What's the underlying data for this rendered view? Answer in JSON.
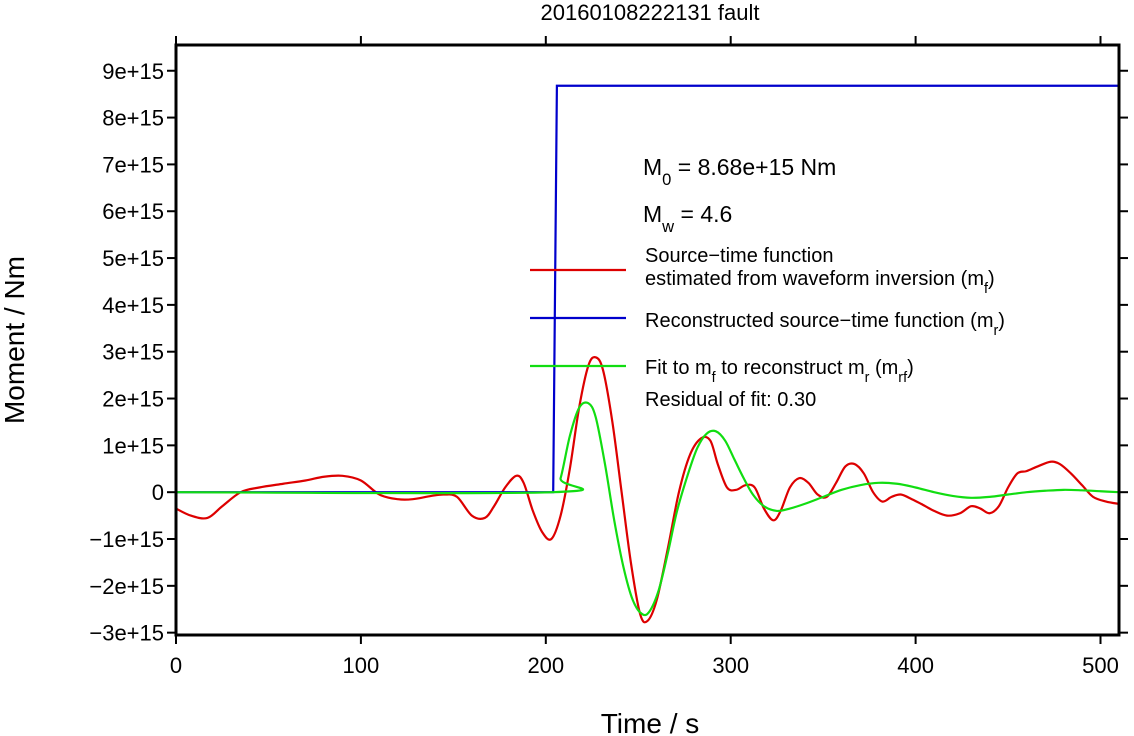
{
  "chart_data": {
    "type": "line",
    "title": "20160108222131 fault",
    "xlabel": "Time / s",
    "ylabel": "Moment / Nm",
    "xlim": [
      0,
      510
    ],
    "ylim": [
      -3050000000000000.0,
      9550000000000000.0
    ],
    "grid": false,
    "x_ticks": [
      0,
      100,
      200,
      300,
      400,
      500
    ],
    "x_tick_labels": [
      "0",
      "100",
      "200",
      "300",
      "400",
      "500"
    ],
    "y_ticks": [
      -3000000000000000.0,
      -2000000000000000.0,
      -1000000000000000.0,
      0,
      1000000000000000.0,
      2000000000000000.0,
      3000000000000000.0,
      4000000000000000.0,
      5000000000000000.0,
      6000000000000000.0,
      7000000000000000.0,
      8000000000000000.0,
      9000000000000000.0
    ],
    "y_tick_labels": [
      "−3e+15",
      "−2e+15",
      "−1e+15",
      "0",
      "1e+15",
      "2e+15",
      "3e+15",
      "4e+15",
      "5e+15",
      "6e+15",
      "7e+15",
      "8e+15",
      "9e+15"
    ],
    "annotations": {
      "m0": {
        "base": "M",
        "sub": "0",
        "rest": " = 8.68e+15 Nm"
      },
      "mw": {
        "base": "M",
        "sub": "w",
        "rest": " = 4.6"
      },
      "residual": "Residual of fit: 0.30"
    },
    "legend_position": "right",
    "series": [
      {
        "name": "Source−time function estimated from waveform inversion (m_f)",
        "legend_lines": [
          {
            "text": "Source−time function"
          },
          {
            "text": "estimated from waveform inversion (m",
            "sub": "f",
            "after": ")"
          }
        ],
        "color": "#dd0000",
        "x": [
          0,
          8,
          17,
          25,
          35,
          45,
          58,
          70,
          80,
          90,
          100,
          110,
          120,
          128,
          138,
          145,
          152,
          160,
          167,
          172,
          178,
          184,
          188,
          193,
          198,
          203,
          208,
          213,
          218,
          223,
          227,
          231,
          236,
          241,
          246,
          251,
          255,
          260,
          266,
          272,
          278,
          284,
          289,
          293,
          298,
          303,
          308,
          313,
          318,
          323,
          327,
          332,
          337,
          342,
          347,
          352,
          357,
          362,
          367,
          372,
          377,
          382,
          387,
          392,
          398,
          403,
          410,
          417,
          424,
          430,
          435,
          440,
          445,
          450,
          455,
          460,
          466,
          473,
          478,
          484,
          490,
          496,
          503,
          510
        ],
        "y": [
          -350000000000000.0,
          -500000000000000.0,
          -550000000000000.0,
          -300000000000000.0,
          0.0,
          100000000000000.0,
          180000000000000.0,
          250000000000000.0,
          330000000000000.0,
          350000000000000.0,
          250000000000000.0,
          -50000000000000.0,
          -150000000000000.0,
          -150000000000000.0,
          -80000000000000.0,
          -50000000000000.0,
          -100000000000000.0,
          -500000000000000.0,
          -550000000000000.0,
          -300000000000000.0,
          100000000000000.0,
          350000000000000.0,
          200000000000000.0,
          -400000000000000.0,
          -850000000000000.0,
          -1000000000000000.0,
          -500000000000000.0,
          500000000000000.0,
          1800000000000000.0,
          2700000000000000.0,
          2880000000000000.0,
          2600000000000000.0,
          1500000000000000.0,
          0.0,
          -1500000000000000.0,
          -2600000000000000.0,
          -2750000000000000.0,
          -2300000000000000.0,
          -1200000000000000.0,
          0.0,
          800000000000000.0,
          1150000000000000.0,
          1100000000000000.0,
          600000000000000.0,
          100000000000000.0,
          50000000000000.0,
          150000000000000.0,
          100000000000000.0,
          -350000000000000.0,
          -600000000000000.0,
          -400000000000000.0,
          100000000000000.0,
          300000000000000.0,
          200000000000000.0,
          -50000000000000.0,
          -100000000000000.0,
          200000000000000.0,
          550000000000000.0,
          600000000000000.0,
          400000000000000.0,
          0.0,
          -200000000000000.0,
          -100000000000000.0,
          -50000000000000.0,
          -150000000000000.0,
          -250000000000000.0,
          -400000000000000.0,
          -500000000000000.0,
          -450000000000000.0,
          -300000000000000.0,
          -350000000000000.0,
          -450000000000000.0,
          -300000000000000.0,
          100000000000000.0,
          400000000000000.0,
          450000000000000.0,
          550000000000000.0,
          650000000000000.0,
          600000000000000.0,
          400000000000000.0,
          150000000000000.0,
          -100000000000000.0,
          -200000000000000.0,
          -250000000000000.0
        ]
      },
      {
        "name": "Reconstructed source−time function (m_r)",
        "legend_lines": [
          {
            "text": "Reconstructed source−time function (m",
            "sub": "r",
            "after": ")"
          }
        ],
        "color": "#0000cc",
        "x": [
          0,
          204,
          206,
          510
        ],
        "y": [
          0,
          0,
          8680000000000000.0,
          8680000000000000.0
        ]
      },
      {
        "name": "Fit to m_f to reconstruct m_r (m_rf)",
        "legend_lines": [
          {
            "text": "Fit to m",
            "sub": "f",
            "after": " to reconstruct m",
            "sub2": "r",
            "after2": " (m",
            "sub3": "rf",
            "after3": ")"
          }
        ],
        "color": "#11dd11",
        "x": [
          0,
          204,
          208,
          213,
          218,
          223,
          227,
          232,
          237,
          242,
          247,
          252,
          256,
          261,
          266,
          271,
          277,
          282,
          287,
          292,
          297,
          302,
          307,
          312,
          318,
          325,
          332,
          340,
          350,
          360,
          370,
          380,
          390,
          400,
          410,
          420,
          430,
          440,
          450,
          460,
          470,
          480,
          490,
          500,
          510
        ],
        "y": [
          0,
          0,
          300000000000000.0,
          1200000000000000.0,
          1800000000000000.0,
          1900000000000000.0,
          1600000000000000.0,
          600000000000000.0,
          -600000000000000.0,
          -1600000000000000.0,
          -2300000000000000.0,
          -2600000000000000.0,
          -2550000000000000.0,
          -2100000000000000.0,
          -1300000000000000.0,
          -400000000000000.0,
          400000000000000.0,
          950000000000000.0,
          1250000000000000.0,
          1300000000000000.0,
          1100000000000000.0,
          700000000000000.0,
          300000000000000.0,
          -50000000000000.0,
          -300000000000000.0,
          -400000000000000.0,
          -350000000000000.0,
          -250000000000000.0,
          -100000000000000.0,
          50000000000000.0,
          150000000000000.0,
          200000000000000.0,
          180000000000000.0,
          100000000000000.0,
          0.0,
          -80000000000000.0,
          -120000000000000.0,
          -100000000000000.0,
          -50000000000000.0,
          0.0,
          30000000000000.0,
          50000000000000.0,
          40000000000000.0,
          20000000000000.0,
          0.0
        ]
      }
    ]
  }
}
